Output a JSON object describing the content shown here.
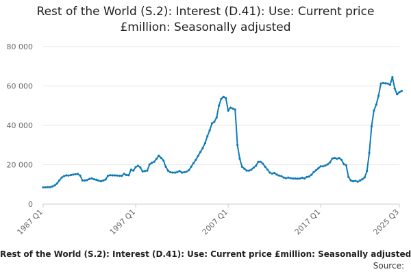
{
  "chart_data": {
    "type": "line",
    "title_line1": "Rest of the World (S.2): Interest (D.41): Use: Current price",
    "title_line2": "£million: Seasonally adjusted",
    "footer_title": "Rest of the World (S.2): Interest (D.41): Use: Current price £million: Seasonally adjusted",
    "source_label": "Source:",
    "ylim": [
      0,
      80000
    ],
    "yticks": [
      0,
      20000,
      40000,
      60000,
      80000
    ],
    "ytick_labels": [
      "0",
      "20 000",
      "40 000",
      "60 000",
      "80 000"
    ],
    "xticks": [
      "1987 Q1",
      "1997 Q1",
      "2007 Q1",
      "2017 Q1",
      "2025 Q3"
    ],
    "x_start": "1987 Q1",
    "x_end": "2025 Q3",
    "grid": true,
    "legend": "none",
    "line_color": "#0f7ab8",
    "series": [
      {
        "values": [
          8500,
          8500,
          8600,
          8600,
          9000,
          9500,
          10500,
          12000,
          13500,
          14200,
          14600,
          14500,
          14800,
          15000,
          15200,
          15300,
          14500,
          12000,
          12000,
          12200,
          12800,
          13100,
          12600,
          12400,
          11900,
          11600,
          12000,
          12500,
          14400,
          14700,
          14600,
          14600,
          14500,
          14400,
          14400,
          15400,
          14800,
          14700,
          17500,
          17000,
          18800,
          19500,
          18600,
          16600,
          16800,
          17000,
          20200,
          21000,
          21500,
          23000,
          24600,
          23500,
          22200,
          19000,
          17000,
          16200,
          16000,
          16000,
          16300,
          16800,
          16000,
          16200,
          16500,
          17200,
          19000,
          20800,
          22500,
          24500,
          26500,
          28500,
          31000,
          34500,
          37500,
          41000,
          41800,
          44000,
          50000,
          53500,
          54500,
          53800,
          47500,
          49000,
          48500,
          48000,
          30000,
          23000,
          19000,
          18000,
          17000,
          17000,
          17500,
          18500,
          19500,
          21500,
          21500,
          20500,
          19000,
          17500,
          16000,
          15500,
          15800,
          15000,
          14500,
          14200,
          13500,
          13200,
          13500,
          13200,
          13000,
          13000,
          12900,
          13000,
          13400,
          13000,
          13800,
          14000,
          14900,
          16300,
          17200,
          18200,
          19200,
          19200,
          19600,
          20200,
          21200,
          23100,
          23500,
          23000,
          23400,
          22500,
          20300,
          19800,
          13800,
          12000,
          11600,
          11800,
          11400,
          12000,
          12600,
          13600,
          16800,
          26000,
          39500,
          47500,
          50500,
          55000,
          61200,
          61500,
          61300,
          61200,
          60600,
          64500,
          58700,
          55800,
          56800,
          57500
        ]
      }
    ]
  }
}
